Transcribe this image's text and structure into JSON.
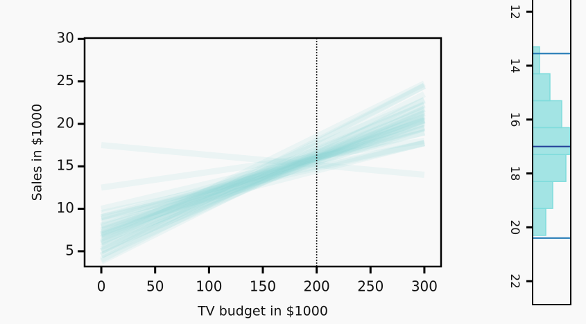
{
  "chart_data": [
    {
      "type": "line",
      "xlabel": "TV budget in $1000",
      "ylabel": "Sales in $1000",
      "x": [
        0,
        300
      ],
      "lines": [
        [
          5.5,
          21.25
        ],
        [
          6,
          21.3
        ],
        [
          6.5,
          20.45
        ],
        [
          7,
          20.5
        ],
        [
          7.5,
          20.4
        ],
        [
          8,
          20
        ],
        [
          8.5,
          19.6
        ],
        [
          9,
          19.5
        ],
        [
          5,
          21.8
        ],
        [
          4.5,
          21.75
        ],
        [
          6.8,
          21.5
        ],
        [
          7.2,
          19.5
        ],
        [
          6.2,
          20.15
        ],
        [
          5.8,
          22.3
        ],
        [
          7.8,
          20.85
        ],
        [
          8.8,
          19
        ],
        [
          6.6,
          22.2
        ],
        [
          7.4,
          20.75
        ],
        [
          5.2,
          20.95
        ],
        [
          6.9,
          20.4
        ],
        [
          4,
          23.5
        ],
        [
          3.8,
          22.85
        ],
        [
          9.5,
          17.75
        ],
        [
          10,
          19
        ],
        [
          5,
          24.5
        ],
        [
          6,
          24.75
        ],
        [
          8,
          17.75
        ],
        [
          4.5,
          24.45
        ],
        [
          7,
          22.75
        ],
        [
          9,
          17.7
        ],
        [
          17.5,
          14
        ],
        [
          12.5,
          18
        ]
      ],
      "color": "#8fd6d3",
      "vline": 200,
      "xlim": [
        -15.5,
        315.5
      ],
      "ylim": [
        3.2,
        30.1
      ],
      "xticks": [
        0,
        50,
        100,
        150,
        200,
        250,
        300
      ],
      "yticks": [
        5,
        10,
        15,
        20,
        25,
        30
      ]
    },
    {
      "type": "histogram",
      "orientation": "horizontal",
      "bins": [
        13.3,
        14.3,
        15.3,
        16.3,
        17.3,
        18.3,
        19.3,
        20.3
      ],
      "counts": [
        10,
        25,
        42,
        54,
        48,
        29,
        19
      ],
      "color": "#7fdcdc",
      "hlines": [
        13.55,
        17.0,
        20.4
      ],
      "hline_colors": [
        "#1f77b4",
        "#233f98",
        "#1f77b4"
      ],
      "countlim": [
        0,
        55
      ],
      "ylim": [
        11.69,
        22.87
      ],
      "yticks": [
        12,
        14,
        16,
        18,
        20,
        22
      ]
    }
  ]
}
